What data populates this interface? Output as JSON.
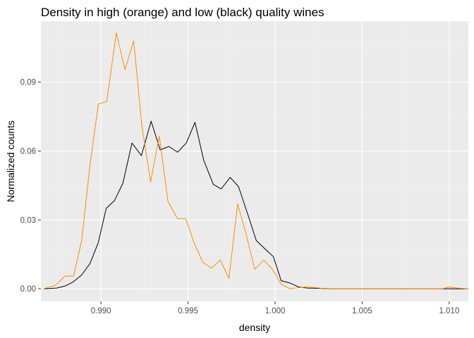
{
  "chart_data": {
    "type": "line",
    "title": "Density in high (orange) and low (black) quality wines",
    "xlabel": "density",
    "ylabel": "Normalized counts",
    "xlim": [
      0.98655,
      1.0111
    ],
    "ylim": [
      -0.0055,
      0.1166
    ],
    "x_ticks": [
      0.99,
      0.995,
      1.0,
      1.005,
      1.01
    ],
    "x_tick_labels": [
      "0.990",
      "0.995",
      "1.000",
      "1.005",
      "1.010"
    ],
    "y_ticks": [
      0.0,
      0.03,
      0.06,
      0.09
    ],
    "y_tick_labels": [
      "0.00",
      "0.03",
      "0.06",
      "0.09"
    ],
    "grid": true,
    "legend": "none",
    "colors": {
      "panel_background": "#ebebeb",
      "grid_major": "#ffffff",
      "grid_minor": "#f5f5f5",
      "axis_text": "#4d4d4d",
      "tick_mark": "#333333"
    },
    "series": [
      {
        "color": "#000000",
        "points": [
          [
            0.98671,
            0.0
          ],
          [
            0.98745,
            0.0003
          ],
          [
            0.98794,
            0.0012
          ],
          [
            0.98841,
            0.003
          ],
          [
            0.98889,
            0.006
          ],
          [
            0.98937,
            0.011
          ],
          [
            0.98984,
            0.02
          ],
          [
            0.9903,
            0.035
          ],
          [
            0.99078,
            0.0385
          ],
          [
            0.99126,
            0.046
          ],
          [
            0.99178,
            0.0635
          ],
          [
            0.99232,
            0.058
          ],
          [
            0.99288,
            0.073
          ],
          [
            0.9934,
            0.0605
          ],
          [
            0.9939,
            0.062
          ],
          [
            0.9944,
            0.0595
          ],
          [
            0.9949,
            0.0635
          ],
          [
            0.9954,
            0.0725
          ],
          [
            0.9959,
            0.056
          ],
          [
            0.99645,
            0.0455
          ],
          [
            0.9969,
            0.0435
          ],
          [
            0.99742,
            0.0485
          ],
          [
            0.9979,
            0.0445
          ],
          [
            0.99845,
            0.032
          ],
          [
            0.99892,
            0.021
          ],
          [
            0.9994,
            0.0175
          ],
          [
            0.9999,
            0.014
          ],
          [
            1.00035,
            0.0035
          ],
          [
            1.00085,
            0.0025
          ],
          [
            1.00135,
            0.0008
          ],
          [
            1.00185,
            0.0003
          ],
          [
            1.00235,
            0.0002
          ],
          [
            1.0028,
            0.0001
          ],
          [
            1.0033,
            0.0
          ],
          [
            1.005,
            0.0
          ],
          [
            1.007,
            0.0
          ],
          [
            1.009,
            0.0
          ],
          [
            1.01,
            0.0
          ],
          [
            1.0111,
            0.0
          ]
        ]
      },
      {
        "color": "#ff8c00",
        "points": [
          [
            0.98671,
            0.0
          ],
          [
            0.98739,
            0.0015
          ],
          [
            0.98793,
            0.0055
          ],
          [
            0.98843,
            0.0055
          ],
          [
            0.98889,
            0.021
          ],
          [
            0.98937,
            0.054
          ],
          [
            0.98985,
            0.0805
          ],
          [
            0.99033,
            0.0815
          ],
          [
            0.99088,
            0.1115
          ],
          [
            0.99138,
            0.0955
          ],
          [
            0.99188,
            0.108
          ],
          [
            0.99234,
            0.0715
          ],
          [
            0.99285,
            0.0465
          ],
          [
            0.99335,
            0.0665
          ],
          [
            0.99385,
            0.038
          ],
          [
            0.9944,
            0.0305
          ],
          [
            0.99487,
            0.0305
          ],
          [
            0.99535,
            0.02
          ],
          [
            0.99585,
            0.0115
          ],
          [
            0.99635,
            0.009
          ],
          [
            0.99685,
            0.0125
          ],
          [
            0.99735,
            0.0045
          ],
          [
            0.99785,
            0.037
          ],
          [
            0.99833,
            0.024
          ],
          [
            0.99883,
            0.0085
          ],
          [
            0.99935,
            0.0125
          ],
          [
            0.99985,
            0.0085
          ],
          [
            1.00035,
            0.002
          ],
          [
            1.00085,
            0.0
          ],
          [
            1.00135,
            0.0005
          ],
          [
            1.00185,
            0.0008
          ],
          [
            1.00235,
            0.0005
          ],
          [
            1.00285,
            0.0
          ],
          [
            1.005,
            0.0
          ],
          [
            1.007,
            0.0
          ],
          [
            1.0096,
            0.0
          ],
          [
            1.01,
            0.0008
          ],
          [
            1.0105,
            0.0003
          ],
          [
            1.0111,
            0.0
          ]
        ]
      }
    ]
  }
}
